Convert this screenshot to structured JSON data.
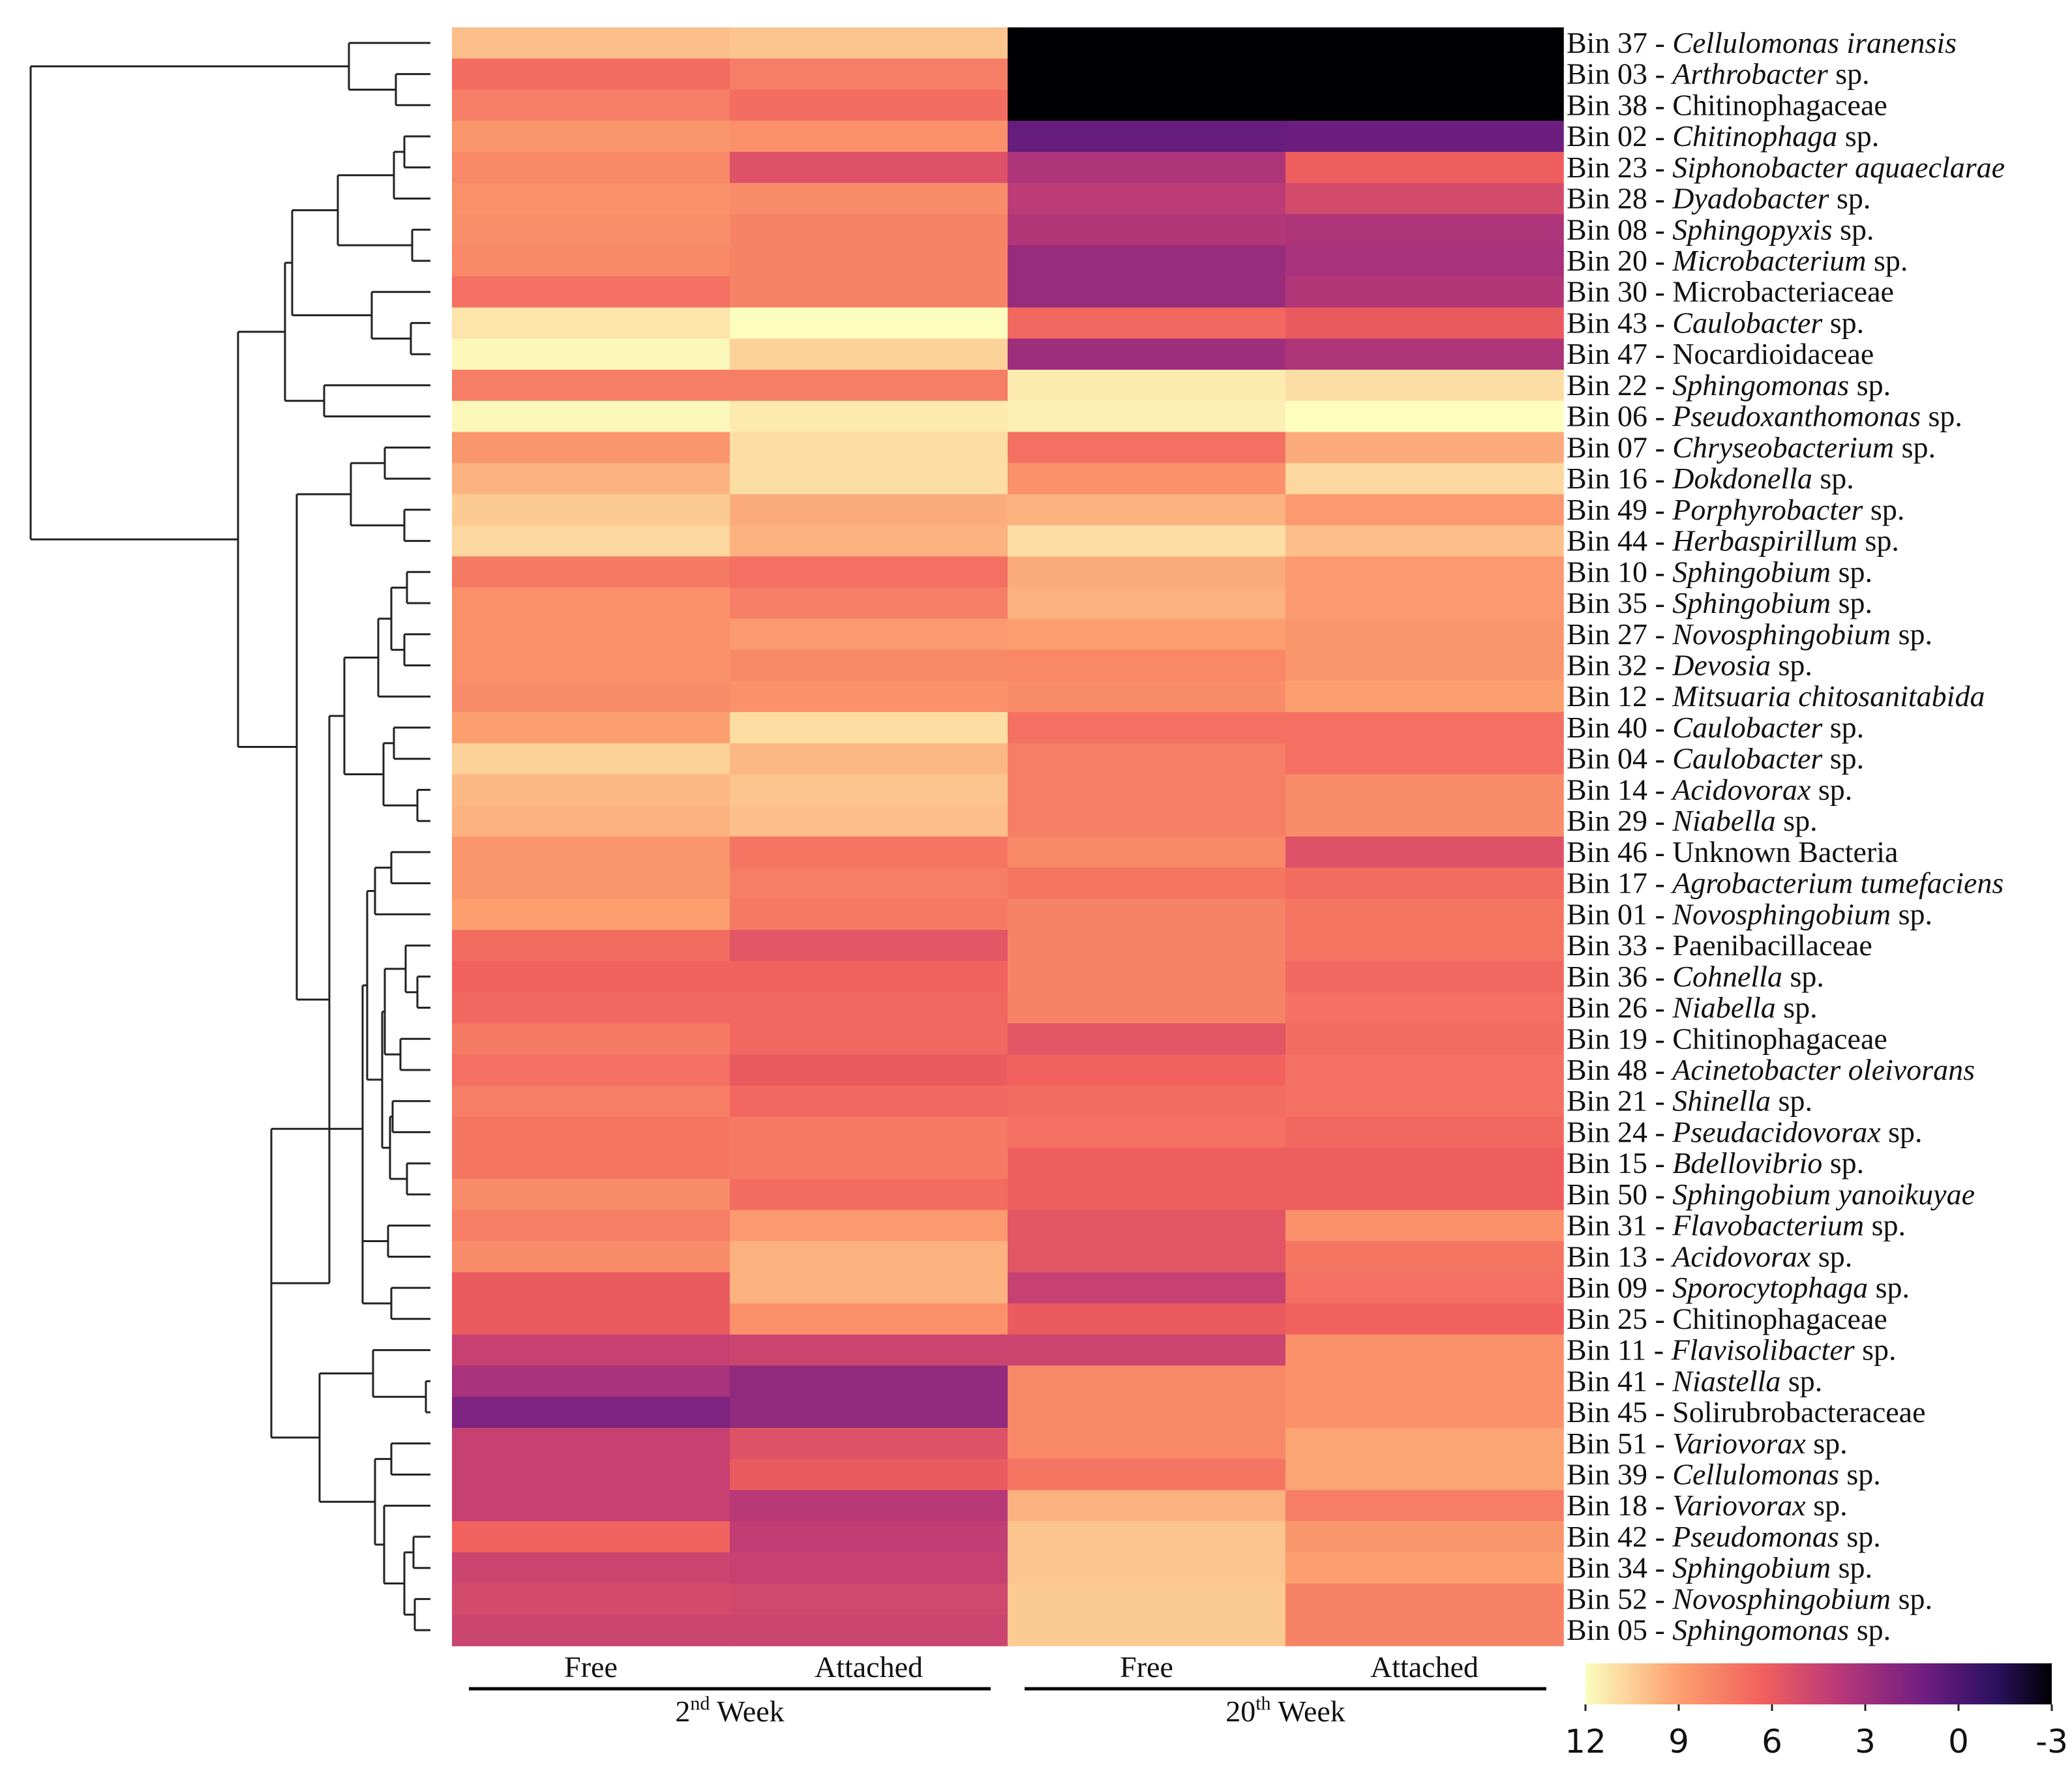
{
  "chart_data": {
    "type": "heatmap",
    "columns": [
      "Free",
      "Attached",
      "Free",
      "Attached"
    ],
    "column_groups": [
      {
        "base": "2",
        "sup": "nd",
        "rest": " Week",
        "columns": [
          0,
          1
        ]
      },
      {
        "base": "20",
        "sup": "th",
        "rest": " Week",
        "columns": [
          2,
          3
        ]
      }
    ],
    "colorbar": {
      "min": -3,
      "max": 12,
      "ticks": [
        "12",
        "9",
        "6",
        "3",
        "0",
        "-3"
      ],
      "tick_values": [
        12,
        9,
        6,
        3,
        0,
        -3
      ],
      "palette": "magma_r"
    },
    "rows": [
      {
        "prefix": "Bin 37 - ",
        "taxon": "Cellulomonas iranensis",
        "italic": true,
        "values": [
          10.0,
          10.2,
          -3.0,
          -3.0
        ]
      },
      {
        "prefix": "Bin 03 - ",
        "taxon": "Arthrobacter",
        "suffix": " sp.",
        "italic": true,
        "values": [
          6.8,
          7.6,
          -3.0,
          -3.0
        ]
      },
      {
        "prefix": "Bin 38 - ",
        "taxon": "Chitinophagaceae",
        "italic": false,
        "values": [
          7.6,
          6.9,
          -3.0,
          -3.0
        ]
      },
      {
        "prefix": "Bin 02 - ",
        "taxon": "Chitinophaga",
        "suffix": " sp.",
        "italic": true,
        "values": [
          8.6,
          8.4,
          0.8,
          1.0
        ]
      },
      {
        "prefix": "Bin 23 - ",
        "taxon": "Siphonobacter aquaeclarae",
        "italic": true,
        "values": [
          8.0,
          5.4,
          3.4,
          6.2
        ]
      },
      {
        "prefix": "Bin 28 - ",
        "taxon": "Dyadobacter",
        "suffix": " sp.",
        "italic": true,
        "values": [
          8.4,
          8.2,
          4.0,
          5.0
        ]
      },
      {
        "prefix": "Bin 08 - ",
        "taxon": "Sphingopyxis",
        "suffix": " sp.",
        "italic": true,
        "values": [
          8.3,
          7.8,
          3.6,
          3.4
        ]
      },
      {
        "prefix": "Bin 20 - ",
        "taxon": "Microbacterium",
        "suffix": " sp.",
        "italic": true,
        "values": [
          8.0,
          7.8,
          2.6,
          3.2
        ]
      },
      {
        "prefix": "Bin 30 - ",
        "taxon": "Microbacteriaceae",
        "italic": false,
        "values": [
          7.0,
          7.8,
          2.6,
          3.6
        ]
      },
      {
        "prefix": "Bin 43 - ",
        "taxon": "Caulobacter",
        "suffix": " sp.",
        "italic": true,
        "values": [
          11.2,
          12.0,
          6.6,
          6.0
        ]
      },
      {
        "prefix": "Bin 47 - ",
        "taxon": "Nocardioidaceae",
        "italic": false,
        "values": [
          11.8,
          10.6,
          2.8,
          3.4
        ]
      },
      {
        "prefix": "Bin 22 - ",
        "taxon": "Sphingomonas",
        "suffix": " sp.",
        "italic": true,
        "values": [
          7.6,
          7.6,
          11.4,
          11.0
        ]
      },
      {
        "prefix": "Bin 06 - ",
        "taxon": "Pseudoxanthomonas",
        "suffix": " sp.",
        "italic": true,
        "values": [
          11.8,
          11.4,
          11.6,
          12.3
        ]
      },
      {
        "prefix": "Bin 07 - ",
        "taxon": "Chryseobacterium",
        "suffix": " sp.",
        "italic": true,
        "values": [
          8.6,
          11.0,
          7.0,
          9.4
        ]
      },
      {
        "prefix": "Bin 16 - ",
        "taxon": "Dokdonella",
        "suffix": " sp.",
        "italic": true,
        "values": [
          9.6,
          11.0,
          8.4,
          10.8
        ]
      },
      {
        "prefix": "Bin 49 - ",
        "taxon": "Porphyrobacter",
        "suffix": " sp.",
        "italic": true,
        "values": [
          10.4,
          9.4,
          9.6,
          8.8
        ]
      },
      {
        "prefix": "Bin 44 - ",
        "taxon": "Herbaspirillum",
        "suffix": " sp.",
        "italic": true,
        "values": [
          10.8,
          9.6,
          11.0,
          10.0
        ]
      },
      {
        "prefix": "Bin 10 - ",
        "taxon": "Sphingobium",
        "suffix": " sp.",
        "italic": true,
        "values": [
          7.4,
          7.0,
          9.4,
          8.8
        ]
      },
      {
        "prefix": "Bin 35 - ",
        "taxon": "Sphingobium",
        "suffix": " sp.",
        "italic": true,
        "values": [
          8.4,
          7.6,
          9.6,
          8.8
        ]
      },
      {
        "prefix": "Bin 27 - ",
        "taxon": "Novosphingobium",
        "suffix": " sp.",
        "italic": true,
        "values": [
          8.4,
          8.8,
          9.0,
          8.6
        ]
      },
      {
        "prefix": "Bin 32 - ",
        "taxon": "Devosia",
        "suffix": " sp.",
        "italic": true,
        "values": [
          8.4,
          8.0,
          8.0,
          8.6
        ]
      },
      {
        "prefix": "Bin 12 - ",
        "taxon": "Mitsuaria chitosanitabida",
        "italic": true,
        "values": [
          8.2,
          8.4,
          8.2,
          9.0
        ]
      },
      {
        "prefix": "Bin 40 - ",
        "taxon": "Caulobacter",
        "suffix": " sp.",
        "italic": true,
        "values": [
          9.0,
          11.0,
          7.0,
          7.0
        ]
      },
      {
        "prefix": "Bin 04 - ",
        "taxon": "Caulobacter",
        "suffix": " sp.",
        "italic": true,
        "values": [
          10.6,
          9.8,
          7.6,
          7.0
        ]
      },
      {
        "prefix": "Bin 14 - ",
        "taxon": "Acidovorax",
        "suffix": " sp.",
        "italic": true,
        "values": [
          9.8,
          10.2,
          7.6,
          8.2
        ]
      },
      {
        "prefix": "Bin 29 - ",
        "taxon": "Niabella",
        "suffix": " sp.",
        "italic": true,
        "values": [
          9.6,
          10.0,
          7.6,
          8.2
        ]
      },
      {
        "prefix": "Bin 46 - ",
        "taxon": "Unknown Bacteria",
        "italic": false,
        "values": [
          8.6,
          7.2,
          8.0,
          5.4
        ]
      },
      {
        "prefix": "Bin 17 - ",
        "taxon": "Agrobacterium tumefaciens",
        "italic": true,
        "values": [
          8.6,
          7.6,
          7.2,
          6.8
        ]
      },
      {
        "prefix": "Bin 01 - ",
        "taxon": "Novosphingobium",
        "suffix": " sp.",
        "italic": true,
        "values": [
          9.0,
          7.4,
          7.8,
          7.2
        ]
      },
      {
        "prefix": "Bin 33 - ",
        "taxon": "Paenibacillaceae",
        "italic": false,
        "values": [
          6.8,
          5.6,
          7.8,
          7.2
        ]
      },
      {
        "prefix": "Bin 36 - ",
        "taxon": "Cohnella",
        "suffix": " sp.",
        "italic": true,
        "values": [
          6.4,
          6.4,
          7.8,
          6.6
        ]
      },
      {
        "prefix": "Bin 26 - ",
        "taxon": "Niabella",
        "suffix": " sp.",
        "italic": true,
        "values": [
          6.6,
          6.6,
          7.8,
          7.0
        ]
      },
      {
        "prefix": "Bin 19 - ",
        "taxon": "Chitinophagaceae",
        "italic": false,
        "values": [
          7.4,
          6.6,
          5.6,
          6.8
        ]
      },
      {
        "prefix": "Bin 48 - ",
        "taxon": "Acinetobacter oleivorans",
        "italic": true,
        "values": [
          7.0,
          6.0,
          6.4,
          7.0
        ]
      },
      {
        "prefix": "Bin 21 - ",
        "taxon": "Shinella",
        "suffix": " sp.",
        "italic": true,
        "values": [
          7.6,
          6.6,
          6.8,
          7.0
        ]
      },
      {
        "prefix": "Bin 24 - ",
        "taxon": "Pseudacidovorax",
        "suffix": " sp.",
        "italic": true,
        "values": [
          7.2,
          7.4,
          7.0,
          6.6
        ]
      },
      {
        "prefix": "Bin 15 - ",
        "taxon": "Bdellovibrio",
        "suffix": " sp.",
        "italic": true,
        "values": [
          7.2,
          7.4,
          6.2,
          6.2
        ]
      },
      {
        "prefix": "Bin 50 - ",
        "taxon": "Sphingobium yanoikuyae",
        "italic": true,
        "values": [
          8.2,
          6.8,
          6.2,
          6.2
        ]
      },
      {
        "prefix": "Bin 31 - ",
        "taxon": "Flavobacterium",
        "suffix": " sp.",
        "italic": true,
        "values": [
          7.6,
          8.8,
          5.6,
          8.4
        ]
      },
      {
        "prefix": "Bin 13 - ",
        "taxon": "Acidovorax",
        "suffix": " sp.",
        "italic": true,
        "values": [
          8.2,
          9.6,
          5.6,
          7.2
        ]
      },
      {
        "prefix": "Bin 09 - ",
        "taxon": "Sporocytophaga",
        "suffix": " sp.",
        "italic": true,
        "values": [
          6.0,
          9.6,
          4.4,
          7.0
        ]
      },
      {
        "prefix": "Bin 25 - ",
        "taxon": "Chitinophagaceae",
        "italic": false,
        "values": [
          6.0,
          8.4,
          6.0,
          6.4
        ]
      },
      {
        "prefix": "Bin 11 - ",
        "taxon": "Flavisolibacter",
        "suffix": " sp.",
        "italic": true,
        "values": [
          4.4,
          4.6,
          4.6,
          8.4
        ]
      },
      {
        "prefix": "Bin 41 - ",
        "taxon": "Niastella",
        "suffix": " sp.",
        "italic": true,
        "values": [
          3.2,
          2.4,
          8.0,
          8.4
        ]
      },
      {
        "prefix": "Bin 45 - ",
        "taxon": "Solirubrobacteraceae",
        "italic": false,
        "values": [
          1.6,
          2.4,
          8.0,
          8.4
        ]
      },
      {
        "prefix": "Bin 51 - ",
        "taxon": "Variovorax",
        "suffix": " sp.",
        "italic": true,
        "values": [
          4.4,
          5.4,
          8.0,
          9.2
        ]
      },
      {
        "prefix": "Bin 39 - ",
        "taxon": "Cellulomonas",
        "suffix": " sp.",
        "italic": true,
        "values": [
          4.4,
          6.0,
          7.2,
          9.2
        ]
      },
      {
        "prefix": "Bin 18 - ",
        "taxon": "Variovorax",
        "suffix": " sp.",
        "italic": true,
        "values": [
          4.4,
          3.8,
          9.6,
          7.6
        ]
      },
      {
        "prefix": "Bin 42 - ",
        "taxon": "Pseudomonas",
        "suffix": " sp.",
        "italic": true,
        "values": [
          6.4,
          4.2,
          10.2,
          8.6
        ]
      },
      {
        "prefix": "Bin 34 - ",
        "taxon": "Sphingobium",
        "suffix": " sp.",
        "italic": true,
        "values": [
          4.6,
          4.4,
          10.2,
          9.0
        ]
      },
      {
        "prefix": "Bin 52 - ",
        "taxon": "Novosphingobium",
        "suffix": " sp.",
        "italic": true,
        "values": [
          5.0,
          4.8,
          10.4,
          7.8
        ]
      },
      {
        "prefix": "Bin 05 - ",
        "taxon": "Sphingomonas",
        "suffix": " sp.",
        "italic": true,
        "values": [
          4.6,
          4.6,
          10.4,
          7.8
        ]
      }
    ]
  }
}
